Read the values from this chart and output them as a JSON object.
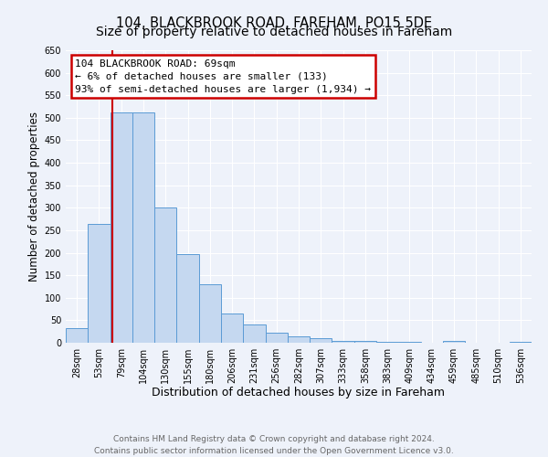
{
  "title": "104, BLACKBROOK ROAD, FAREHAM, PO15 5DE",
  "subtitle": "Size of property relative to detached houses in Fareham",
  "xlabel": "Distribution of detached houses by size in Fareham",
  "ylabel": "Number of detached properties",
  "bar_labels": [
    "28sqm",
    "53sqm",
    "79sqm",
    "104sqm",
    "130sqm",
    "155sqm",
    "180sqm",
    "206sqm",
    "231sqm",
    "256sqm",
    "282sqm",
    "307sqm",
    "333sqm",
    "358sqm",
    "383sqm",
    "409sqm",
    "434sqm",
    "459sqm",
    "485sqm",
    "510sqm",
    "536sqm"
  ],
  "bar_values": [
    32,
    265,
    512,
    512,
    300,
    197,
    130,
    65,
    40,
    22,
    15,
    10,
    5,
    5,
    2,
    2,
    0,
    4,
    0,
    0,
    2
  ],
  "bar_color": "#c5d8f0",
  "bar_edge_color": "#5b9bd5",
  "bar_edge_width": 0.7,
  "ylim": [
    0,
    650
  ],
  "yticks": [
    0,
    50,
    100,
    150,
    200,
    250,
    300,
    350,
    400,
    450,
    500,
    550,
    600,
    650
  ],
  "red_line_color": "#cc0000",
  "annotation_title": "104 BLACKBROOK ROAD: 69sqm",
  "annotation_line1": "← 6% of detached houses are smaller (133)",
  "annotation_line2": "93% of semi-detached houses are larger (1,934) →",
  "annotation_box_facecolor": "#ffffff",
  "annotation_box_edgecolor": "#cc0000",
  "background_color": "#eef2fa",
  "grid_color": "#ffffff",
  "footer_line1": "Contains HM Land Registry data © Crown copyright and database right 2024.",
  "footer_line2": "Contains public sector information licensed under the Open Government Licence v3.0.",
  "footer_color": "#666666",
  "title_fontsize": 10.5,
  "xlabel_fontsize": 9,
  "ylabel_fontsize": 8.5,
  "tick_fontsize": 7,
  "annotation_fontsize": 8,
  "footer_fontsize": 6.5
}
